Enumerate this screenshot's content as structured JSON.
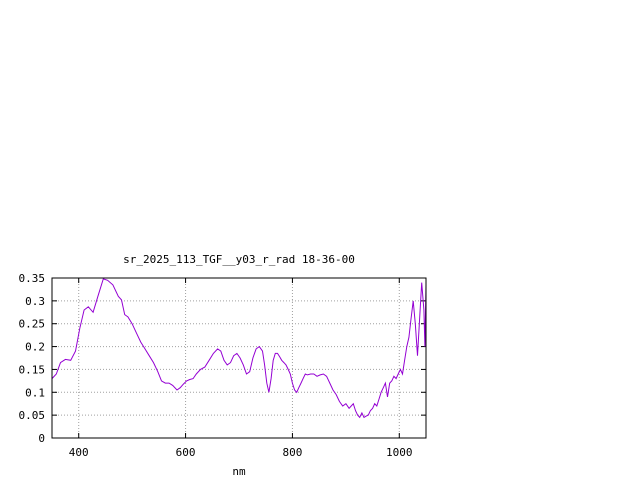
{
  "chart_data": {
    "type": "line",
    "title": "sr_2025_113_TGF__y03_r_rad 18-36-00",
    "xlabel": "nm",
    "ylabel": "",
    "xlim": [
      350,
      1050
    ],
    "ylim": [
      0,
      0.35
    ],
    "xticks": [
      400,
      600,
      800,
      1000
    ],
    "yticks": [
      0,
      0.05,
      0.1,
      0.15,
      0.2,
      0.25,
      0.3,
      0.35
    ],
    "ytick_labels": [
      "0",
      "0.05",
      "0.1",
      "0.15",
      "0.2",
      "0.25",
      "0.3",
      "0.35"
    ],
    "grid": true,
    "legend": false,
    "series": [
      {
        "color": "#9400d3",
        "x": [
          350,
          358,
          366,
          375,
          385,
          394,
          402,
          410,
          418,
          427,
          436,
          446,
          454,
          464,
          474,
          480,
          486,
          492,
          500,
          508,
          516,
          524,
          532,
          540,
          548,
          555,
          562,
          569,
          576,
          584,
          590,
          596,
          602,
          608,
          614,
          620,
          628,
          636,
          644,
          652,
          660,
          666,
          672,
          678,
          684,
          690,
          696,
          702,
          708,
          714,
          720,
          726,
          732,
          738,
          744,
          748,
          752,
          756,
          760,
          764,
          768,
          772,
          776,
          780,
          784,
          788,
          792,
          796,
          800,
          804,
          808,
          812,
          816,
          820,
          824,
          828,
          834,
          840,
          846,
          852,
          858,
          864,
          870,
          876,
          882,
          888,
          894,
          900,
          906,
          910,
          914,
          918,
          922,
          926,
          930,
          934,
          938,
          942,
          946,
          950,
          954,
          958,
          962,
          966,
          970,
          974,
          978,
          982,
          986,
          990,
          994,
          998,
          1002,
          1006,
          1010,
          1014,
          1018,
          1022,
          1026,
          1030,
          1034,
          1038,
          1042,
          1046,
          1048,
          1050
        ],
        "y": [
          0.13,
          0.14,
          0.165,
          0.172,
          0.17,
          0.19,
          0.24,
          0.28,
          0.287,
          0.275,
          0.31,
          0.348,
          0.345,
          0.335,
          0.31,
          0.302,
          0.27,
          0.265,
          0.25,
          0.23,
          0.21,
          0.195,
          0.18,
          0.165,
          0.145,
          0.125,
          0.12,
          0.12,
          0.115,
          0.105,
          0.11,
          0.118,
          0.125,
          0.128,
          0.13,
          0.14,
          0.15,
          0.155,
          0.17,
          0.185,
          0.195,
          0.19,
          0.17,
          0.16,
          0.165,
          0.18,
          0.185,
          0.175,
          0.16,
          0.14,
          0.145,
          0.175,
          0.195,
          0.2,
          0.19,
          0.16,
          0.12,
          0.1,
          0.13,
          0.17,
          0.185,
          0.185,
          0.178,
          0.17,
          0.165,
          0.16,
          0.15,
          0.14,
          0.12,
          0.105,
          0.1,
          0.11,
          0.12,
          0.13,
          0.14,
          0.138,
          0.14,
          0.14,
          0.135,
          0.138,
          0.14,
          0.135,
          0.12,
          0.105,
          0.095,
          0.08,
          0.07,
          0.075,
          0.065,
          0.07,
          0.075,
          0.06,
          0.05,
          0.045,
          0.055,
          0.045,
          0.048,
          0.05,
          0.06,
          0.065,
          0.075,
          0.07,
          0.085,
          0.1,
          0.11,
          0.12,
          0.09,
          0.12,
          0.125,
          0.135,
          0.13,
          0.14,
          0.15,
          0.14,
          0.17,
          0.2,
          0.22,
          0.26,
          0.3,
          0.25,
          0.18,
          0.26,
          0.34,
          0.28,
          0.2,
          0.335
        ]
      }
    ]
  }
}
